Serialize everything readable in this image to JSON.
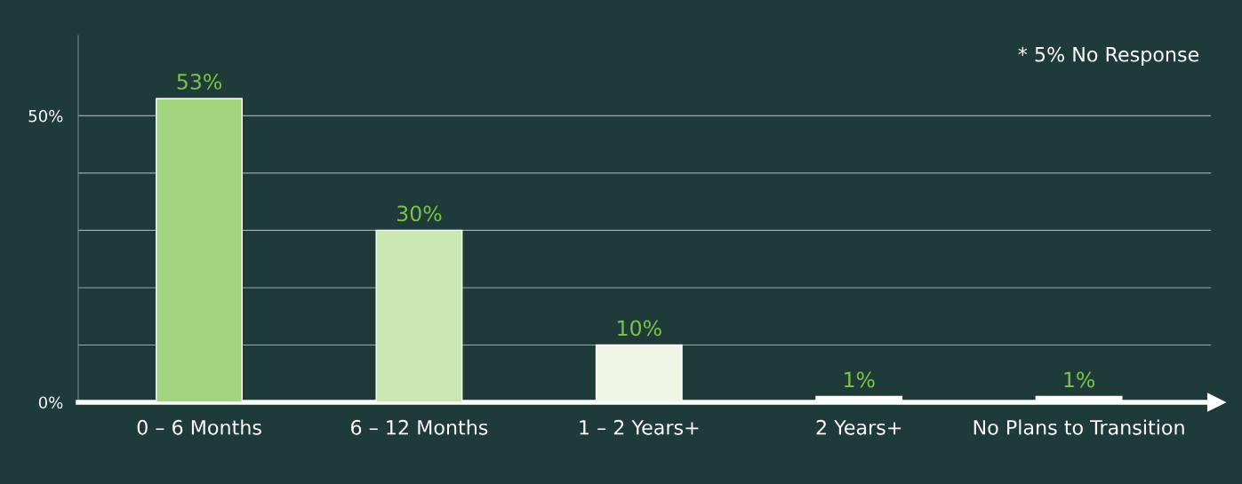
{
  "chart_data": {
    "type": "bar",
    "categories": [
      "0 – 6 Months",
      "6 – 12 Months",
      "1 – 2 Years+",
      "2 Years+",
      "No Plans to Transition"
    ],
    "values": [
      53,
      30,
      10,
      1,
      1
    ],
    "colors": [
      "#a3d47f",
      "#cbe7b3",
      "#eef6e6",
      "#ffffff",
      "#ffffff"
    ],
    "value_labels": [
      "53%",
      "30%",
      "10%",
      "1%",
      "1%"
    ],
    "ylim": [
      0,
      64
    ],
    "yticks": [
      {
        "value": 0,
        "label": "0%"
      },
      {
        "value": 10,
        "label": null
      },
      {
        "value": 20,
        "label": null
      },
      {
        "value": 30,
        "label": null
      },
      {
        "value": 40,
        "label": null
      },
      {
        "value": 50,
        "label": "50%"
      }
    ],
    "grid": "y",
    "annotations": [
      "* 5% No Response"
    ]
  }
}
